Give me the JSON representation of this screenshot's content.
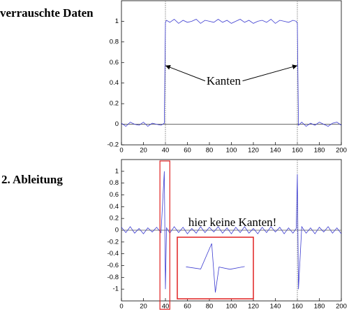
{
  "chart_data": [
    {
      "type": "line",
      "title": "verrauschte Daten",
      "color": "#3b3bd0",
      "x": [
        0,
        4,
        8,
        12,
        16,
        20,
        24,
        28,
        32,
        36,
        39,
        40,
        41,
        44,
        48,
        52,
        56,
        60,
        64,
        68,
        72,
        76,
        80,
        84,
        88,
        92,
        96,
        100,
        104,
        108,
        112,
        116,
        120,
        124,
        128,
        132,
        136,
        140,
        144,
        148,
        152,
        156,
        159,
        160,
        161,
        164,
        168,
        172,
        176,
        180,
        184,
        188,
        192,
        196,
        200
      ],
      "values": [
        0.01,
        -0.02,
        0.02,
        0.0,
        -0.01,
        0.02,
        -0.02,
        0.01,
        0.0,
        -0.01,
        0.01,
        0.99,
        1.01,
        0.99,
        1.02,
        0.98,
        1.01,
        0.99,
        1.0,
        1.02,
        0.98,
        1.01,
        1.0,
        0.99,
        1.02,
        0.99,
        1.01,
        0.98,
        1.0,
        1.02,
        0.99,
        1.01,
        0.98,
        1.0,
        1.01,
        0.99,
        1.02,
        0.98,
        1.01,
        1.0,
        0.99,
        1.01,
        1.0,
        0.98,
        -0.01,
        0.02,
        -0.02,
        0.01,
        -0.01,
        0.02,
        0.0,
        -0.02,
        0.01,
        0.02,
        -0.01
      ],
      "xlim": [
        0,
        200
      ],
      "xticks": [
        0,
        20,
        40,
        60,
        80,
        100,
        120,
        140,
        160,
        180,
        200
      ],
      "ylim": [
        -0.2,
        1.2
      ],
      "yticks": [
        -0.2,
        0,
        0.2,
        0.4,
        0.6,
        0.8,
        1
      ],
      "reference_lines": [
        40,
        160
      ],
      "annotation": {
        "text": "Kanten",
        "x": 93,
        "y": 0.41,
        "arrows_to": [
          [
            40,
            0.57
          ],
          [
            160,
            0.57
          ]
        ]
      }
    },
    {
      "type": "line",
      "title": "2. Ableitung",
      "color": "#3b3bd0",
      "x": [
        0,
        4,
        8,
        12,
        16,
        20,
        24,
        28,
        32,
        36,
        39,
        40,
        41,
        44,
        48,
        52,
        56,
        60,
        64,
        68,
        72,
        76,
        80,
        84,
        88,
        92,
        96,
        100,
        104,
        108,
        112,
        116,
        120,
        124,
        128,
        132,
        136,
        140,
        144,
        148,
        152,
        156,
        159,
        160,
        161,
        164,
        168,
        172,
        176,
        180,
        184,
        188,
        192,
        196,
        200
      ],
      "values": [
        0.05,
        -0.04,
        0.06,
        -0.05,
        0.03,
        -0.06,
        0.04,
        -0.03,
        0.05,
        -0.04,
        1,
        -1,
        0.04,
        -0.05,
        0.06,
        -0.04,
        0.05,
        -0.06,
        0.03,
        -0.05,
        0.06,
        -0.04,
        0.05,
        -0.03,
        0.06,
        -0.05,
        0.04,
        -0.06,
        0.05,
        -0.04,
        0.06,
        -0.05,
        0.03,
        -0.06,
        0.05,
        -0.04,
        0.06,
        -0.03,
        0.05,
        -0.06,
        0.04,
        -0.05,
        0.03,
        0.95,
        -1,
        0.06,
        -0.05,
        0.04,
        -0.06,
        0.05,
        -0.03,
        0.06,
        -0.05,
        0.04,
        -0.06
      ],
      "xlim": [
        0,
        200
      ],
      "xticks": [
        0,
        20,
        40,
        60,
        80,
        100,
        120,
        140,
        160,
        180,
        200
      ],
      "ylim": [
        -1.2,
        1.2
      ],
      "yticks": [
        -1,
        -0.8,
        -0.6,
        -0.4,
        -0.2,
        0,
        0.2,
        0.4,
        0.6,
        0.8,
        1
      ],
      "reference_lines": [
        160
      ],
      "highlight_x": [
        35,
        44
      ],
      "inset_xlim": [
        30,
        50
      ],
      "annotation": {
        "text": "hier keine Kanten!",
        "x": 101,
        "y": 0.12
      }
    }
  ]
}
